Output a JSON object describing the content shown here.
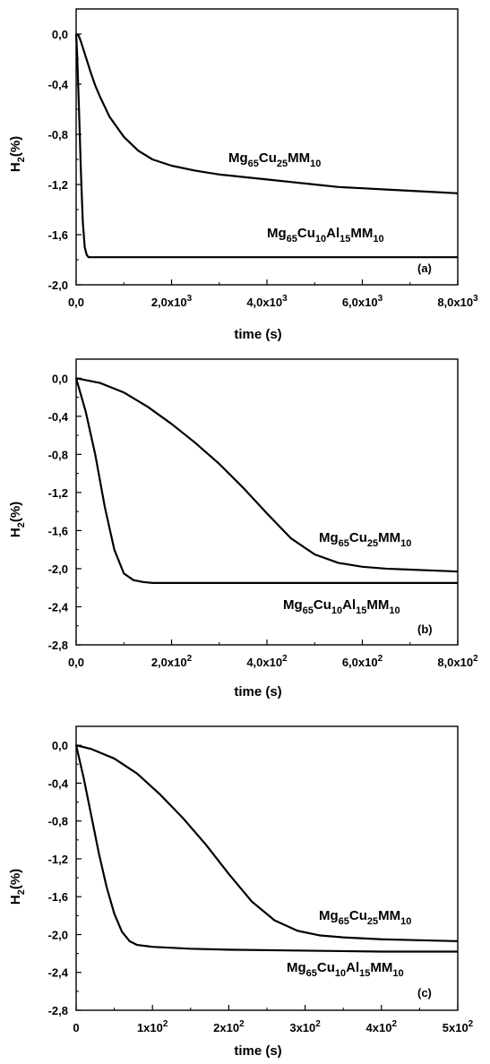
{
  "chart_data": [
    {
      "type": "line",
      "panel_label": "(a)",
      "xlabel": "time (s)",
      "ylabel": {
        "main": "H",
        "sub": "2",
        "tail": "(%)"
      },
      "xlim": [
        0,
        8000
      ],
      "ylim": [
        -2.0,
        0.2
      ],
      "xticks": [
        {
          "value": 0,
          "label": "0,0",
          "exp": ""
        },
        {
          "value": 2000,
          "label": "2,0x10",
          "exp": "3"
        },
        {
          "value": 4000,
          "label": "4,0x10",
          "exp": "3"
        },
        {
          "value": 6000,
          "label": "6,0x10",
          "exp": "3"
        },
        {
          "value": 8000,
          "label": "8,0x10",
          "exp": "3"
        }
      ],
      "yticks": [
        {
          "value": 0.0,
          "label": "0,0"
        },
        {
          "value": -0.4,
          "label": "-0,4"
        },
        {
          "value": -0.8,
          "label": "-0,8"
        },
        {
          "value": -1.2,
          "label": "-1,2"
        },
        {
          "value": -1.6,
          "label": "-1,6"
        },
        {
          "value": -2.0,
          "label": "-2,0"
        }
      ],
      "series": [
        {
          "x": [
            0,
            50,
            100,
            200,
            300,
            400,
            500,
            700,
            1000,
            1300,
            1600,
            2000,
            2500,
            3000,
            3500,
            4000,
            4500,
            5000,
            5500,
            6000,
            6500,
            7000,
            7500,
            8000
          ],
          "y": [
            0.0,
            -0.01,
            -0.06,
            -0.18,
            -0.3,
            -0.41,
            -0.5,
            -0.66,
            -0.82,
            -0.93,
            -1.0,
            -1.05,
            -1.09,
            -1.12,
            -1.14,
            -1.16,
            -1.18,
            -1.2,
            -1.22,
            -1.23,
            -1.24,
            -1.25,
            -1.26,
            -1.27
          ]
        },
        {
          "x": [
            0,
            20,
            60,
            100,
            140,
            180,
            220,
            260,
            300,
            500,
            1000,
            2000,
            4000,
            6000,
            8000
          ],
          "y": [
            0.0,
            -0.15,
            -0.6,
            -1.1,
            -1.5,
            -1.7,
            -1.76,
            -1.78,
            -1.78,
            -1.78,
            -1.78,
            -1.78,
            -1.78,
            -1.78,
            -1.78
          ]
        }
      ],
      "annotations": [
        {
          "parts": [
            [
              "Mg",
              ""
            ],
            [
              "65",
              "sub"
            ],
            [
              "Cu",
              ""
            ],
            [
              "25",
              "sub"
            ],
            [
              "MM",
              ""
            ],
            [
              "10",
              "sub"
            ]
          ]
        },
        {
          "parts": [
            [
              "Mg",
              ""
            ],
            [
              "65",
              "sub"
            ],
            [
              "Cu",
              ""
            ],
            [
              "10",
              "sub"
            ],
            [
              "Al",
              ""
            ],
            [
              "15",
              "sub"
            ],
            [
              "MM",
              ""
            ],
            [
              "10",
              "sub"
            ]
          ]
        }
      ]
    },
    {
      "type": "line",
      "panel_label": "(b)",
      "xlabel": "time (s)",
      "ylabel": {
        "main": "H",
        "sub": "2",
        "tail": "(%)"
      },
      "xlim": [
        0,
        800
      ],
      "ylim": [
        -2.8,
        0.2
      ],
      "xticks": [
        {
          "value": 0,
          "label": "0,0",
          "exp": ""
        },
        {
          "value": 200,
          "label": "2,0x10",
          "exp": "2"
        },
        {
          "value": 400,
          "label": "4,0x10",
          "exp": "2"
        },
        {
          "value": 600,
          "label": "6,0x10",
          "exp": "2"
        },
        {
          "value": 800,
          "label": "8,0x10",
          "exp": "2"
        }
      ],
      "yticks": [
        {
          "value": 0.0,
          "label": "0,0"
        },
        {
          "value": -0.4,
          "label": "-0,4"
        },
        {
          "value": -0.8,
          "label": "-0,8"
        },
        {
          "value": -1.2,
          "label": "-1,2"
        },
        {
          "value": -1.6,
          "label": "-1,6"
        },
        {
          "value": -2.0,
          "label": "-2,0"
        },
        {
          "value": -2.4,
          "label": "-2,4"
        },
        {
          "value": -2.8,
          "label": "-2,8"
        }
      ],
      "series": [
        {
          "x": [
            0,
            50,
            100,
            150,
            200,
            250,
            300,
            350,
            400,
            450,
            500,
            550,
            600,
            650,
            700,
            750,
            800
          ],
          "y": [
            0.0,
            -0.05,
            -0.15,
            -0.3,
            -0.48,
            -0.68,
            -0.9,
            -1.15,
            -1.42,
            -1.68,
            -1.85,
            -1.94,
            -1.98,
            -2.0,
            -2.01,
            -2.02,
            -2.03
          ]
        },
        {
          "x": [
            0,
            20,
            40,
            60,
            80,
            100,
            120,
            140,
            160,
            200,
            300,
            400,
            600,
            800
          ],
          "y": [
            0.0,
            -0.35,
            -0.8,
            -1.35,
            -1.8,
            -2.05,
            -2.12,
            -2.14,
            -2.15,
            -2.15,
            -2.15,
            -2.15,
            -2.15,
            -2.15
          ]
        }
      ],
      "annotations": [
        {
          "parts": [
            [
              "Mg",
              ""
            ],
            [
              "65",
              "sub"
            ],
            [
              "Cu",
              ""
            ],
            [
              "25",
              "sub"
            ],
            [
              "MM",
              ""
            ],
            [
              "10",
              "sub"
            ]
          ]
        },
        {
          "parts": [
            [
              "Mg",
              ""
            ],
            [
              "65",
              "sub"
            ],
            [
              "Cu",
              ""
            ],
            [
              "10",
              "sub"
            ],
            [
              "Al",
              ""
            ],
            [
              "15",
              "sub"
            ],
            [
              "MM",
              ""
            ],
            [
              "10",
              "sub"
            ]
          ]
        }
      ]
    },
    {
      "type": "line",
      "panel_label": "(c)",
      "xlabel": "time (s)",
      "ylabel": {
        "main": "H",
        "sub": "2",
        "tail": "(%)"
      },
      "xlim": [
        0,
        500
      ],
      "ylim": [
        -2.8,
        0.2
      ],
      "xticks": [
        {
          "value": 0,
          "label": "0",
          "exp": ""
        },
        {
          "value": 100,
          "label": "1x10",
          "exp": "2"
        },
        {
          "value": 200,
          "label": "2x10",
          "exp": "2"
        },
        {
          "value": 300,
          "label": "3x10",
          "exp": "2"
        },
        {
          "value": 400,
          "label": "4x10",
          "exp": "2"
        },
        {
          "value": 500,
          "label": "5x10",
          "exp": "2"
        }
      ],
      "yticks": [
        {
          "value": 0.0,
          "label": "0,0"
        },
        {
          "value": -0.4,
          "label": "-0,4"
        },
        {
          "value": -0.8,
          "label": "-0,8"
        },
        {
          "value": -1.2,
          "label": "-1,2"
        },
        {
          "value": -1.6,
          "label": "-1,6"
        },
        {
          "value": -2.0,
          "label": "-2,0"
        },
        {
          "value": -2.4,
          "label": "-2,4"
        },
        {
          "value": -2.8,
          "label": "-2,8"
        }
      ],
      "series": [
        {
          "x": [
            0,
            20,
            50,
            80,
            110,
            140,
            170,
            200,
            230,
            260,
            290,
            320,
            350,
            400,
            450,
            500
          ],
          "y": [
            0.0,
            -0.04,
            -0.14,
            -0.3,
            -0.52,
            -0.77,
            -1.05,
            -1.36,
            -1.65,
            -1.85,
            -1.96,
            -2.01,
            -2.03,
            -2.05,
            -2.06,
            -2.07
          ]
        },
        {
          "x": [
            0,
            10,
            20,
            30,
            40,
            50,
            60,
            70,
            80,
            90,
            100,
            150,
            200,
            300,
            400,
            500
          ],
          "y": [
            0.0,
            -0.35,
            -0.75,
            -1.15,
            -1.5,
            -1.78,
            -1.97,
            -2.07,
            -2.11,
            -2.12,
            -2.13,
            -2.15,
            -2.16,
            -2.17,
            -2.18,
            -2.18
          ]
        }
      ],
      "annotations": [
        {
          "parts": [
            [
              "Mg",
              ""
            ],
            [
              "65",
              "sub"
            ],
            [
              "Cu",
              ""
            ],
            [
              "25",
              "sub"
            ],
            [
              "MM",
              ""
            ],
            [
              "10",
              "sub"
            ]
          ]
        },
        {
          "parts": [
            [
              "Mg",
              ""
            ],
            [
              "65",
              "sub"
            ],
            [
              "Cu",
              ""
            ],
            [
              "10",
              "sub"
            ],
            [
              "Al",
              ""
            ],
            [
              "15",
              "sub"
            ],
            [
              "MM",
              ""
            ],
            [
              "10",
              "sub"
            ]
          ]
        }
      ]
    }
  ]
}
